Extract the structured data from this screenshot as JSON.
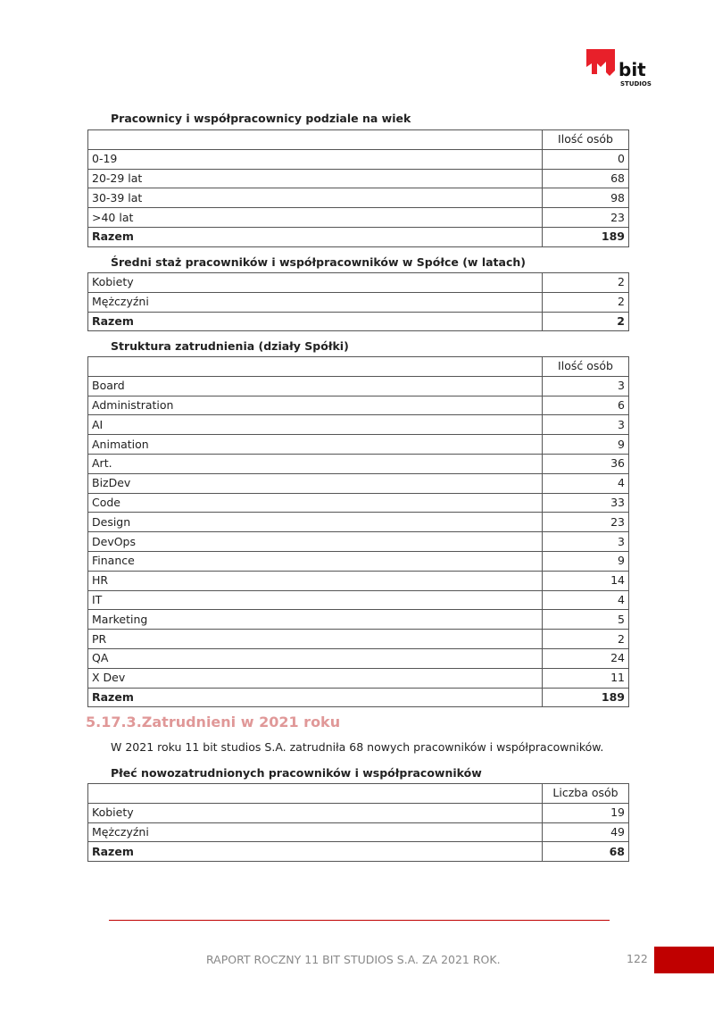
{
  "logo": {
    "text": "11 bit studios",
    "color": "#e8202a"
  },
  "age_table": {
    "title": "Pracownicy i współpracownicy podziale na wiek",
    "header": "Ilość osób",
    "rows": [
      {
        "label": "0-19",
        "value": "0"
      },
      {
        "label": "20-29 lat",
        "value": "68"
      },
      {
        "label": "30-39 lat",
        "value": "98"
      },
      {
        "label": ">40 lat",
        "value": "23"
      }
    ],
    "total": {
      "label": "Razem",
      "value": "189"
    }
  },
  "tenure_table": {
    "title": "Średni staż pracowników i współpracowników w Spółce (w latach)",
    "rows": [
      {
        "label": "Kobiety",
        "value": "2"
      },
      {
        "label": "Mężczyźni",
        "value": "2"
      }
    ],
    "total": {
      "label": "Razem",
      "value": "2"
    }
  },
  "dept_table": {
    "title": "Struktura zatrudnienia (działy Spółki)",
    "header": "Ilość osób",
    "rows": [
      {
        "label": "Board",
        "value": "3"
      },
      {
        "label": "Administration",
        "value": "6"
      },
      {
        "label": "AI",
        "value": "3"
      },
      {
        "label": "Animation",
        "value": "9"
      },
      {
        "label": "Art.",
        "value": "36"
      },
      {
        "label": "BizDev",
        "value": "4"
      },
      {
        "label": "Code",
        "value": "33"
      },
      {
        "label": "Design",
        "value": "23"
      },
      {
        "label": "DevOps",
        "value": "3"
      },
      {
        "label": "Finance",
        "value": "9"
      },
      {
        "label": "HR",
        "value": "14"
      },
      {
        "label": "IT",
        "value": "4"
      },
      {
        "label": "Marketing",
        "value": "5"
      },
      {
        "label": "PR",
        "value": "2"
      },
      {
        "label": "QA",
        "value": "24"
      },
      {
        "label": "X Dev",
        "value": "11"
      }
    ],
    "total": {
      "label": "Razem",
      "value": "189"
    }
  },
  "section": {
    "heading": "5.17.3.Zatrudnieni w 2021 roku",
    "paragraph": "W 2021 roku 11 bit studios S.A. zatrudniła 68 nowych pracowników i współpracowników.",
    "heading_color": "#e09898"
  },
  "gender_table": {
    "title": "Płeć nowozatrudnionych pracowników i współpracowników",
    "header": "Liczba osób",
    "rows": [
      {
        "label": "Kobiety",
        "value": "19"
      },
      {
        "label": "Mężczyźni",
        "value": "49"
      }
    ],
    "total": {
      "label": "Razem",
      "value": "68"
    }
  },
  "footer": {
    "text": "RAPORT ROCZNY 11 BIT STUDIOS S.A. ZA 2021 ROK.",
    "page_number": "122",
    "accent": "#c00000"
  }
}
